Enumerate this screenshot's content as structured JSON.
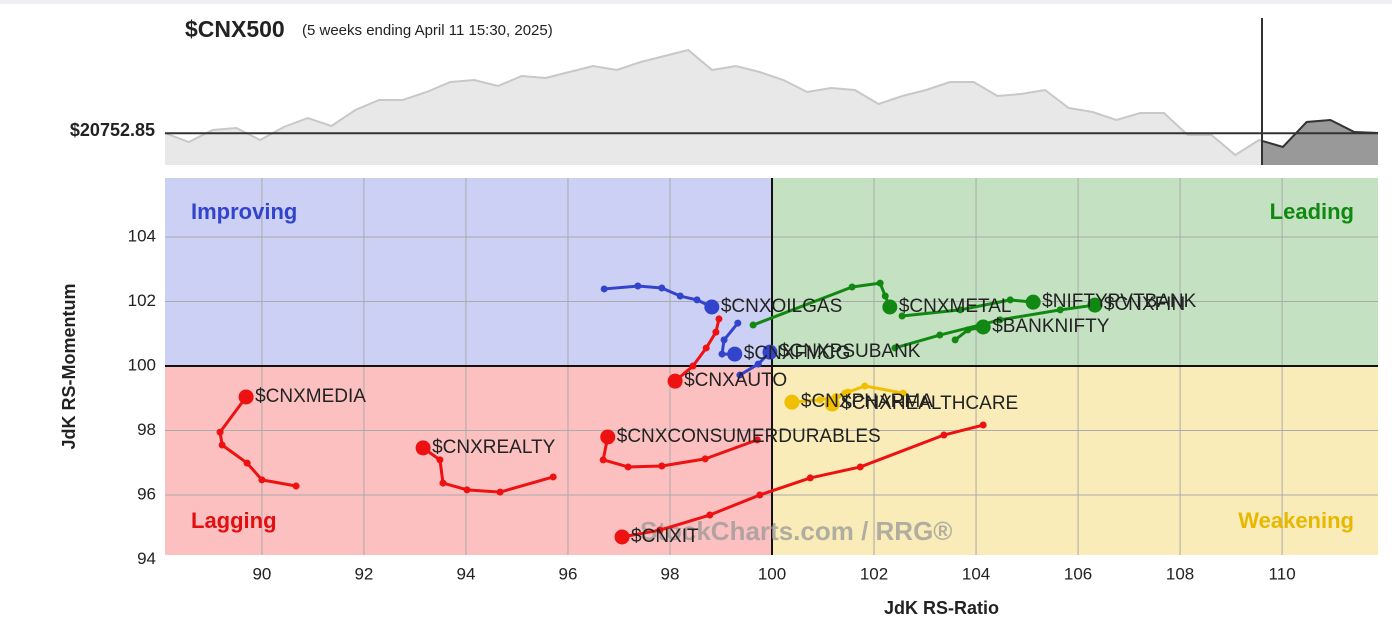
{
  "chart_data": [
    {
      "type": "area",
      "title": "$CNX500",
      "subtitle": "(5 weeks ending April 11 15:30, 2025)",
      "values": [
        20760,
        20490,
        20850,
        20910,
        20550,
        20940,
        21210,
        20970,
        21450,
        21750,
        21750,
        21990,
        22290,
        22350,
        22170,
        22470,
        22410,
        22590,
        22770,
        22650,
        22890,
        23070,
        23250,
        22650,
        22770,
        22590,
        22350,
        21990,
        22110,
        22050,
        21630,
        21870,
        22050,
        22290,
        22290,
        21870,
        21930,
        22050,
        21510,
        21390,
        21150,
        21360,
        21360,
        20700,
        20700,
        20100,
        20550,
        20340,
        21090,
        21150,
        20790,
        20760
      ],
      "ylim": [
        19800,
        24210
      ],
      "reference": {
        "value": 20752.85,
        "label": "$20752.85"
      },
      "color": "#c8c8c8"
    },
    {
      "type": "rrg",
      "xlabel": "JdK RS-Ratio",
      "ylabel": "JdK RS-Momentum",
      "xlim": [
        88.1,
        111.88
      ],
      "ylim": [
        94.14,
        105.83
      ],
      "xticks": [
        90,
        92,
        94,
        96,
        98,
        100,
        102,
        104,
        106,
        108,
        110
      ],
      "yticks": [
        94,
        96,
        98,
        100,
        102,
        104
      ],
      "center": [
        100,
        100
      ],
      "grid": true,
      "watermark": "StockCharts.com / RRG®",
      "quadrants": [
        {
          "label": "Improving",
          "color": "#ccd0f4",
          "text_color": "#3344cc"
        },
        {
          "label": "Leading",
          "color": "#c4e2c2",
          "text_color": "#118811"
        },
        {
          "label": "Lagging",
          "color": "#fcc0c0",
          "text_color": "#e01010"
        },
        {
          "label": "Weakening",
          "color": "#f9ecb8",
          "text_color": "#e8b800"
        }
      ],
      "series": [
        {
          "name": "$CNXMEDIA",
          "color": "#ee1111",
          "x": [
            90.67,
            90.0,
            89.71,
            89.22,
            89.18,
            89.69
          ],
          "values": [
            96.28,
            96.47,
            96.99,
            97.55,
            97.95,
            99.04
          ]
        },
        {
          "name": "$CNXREALTY",
          "color": "#ee1111",
          "x": [
            95.71,
            94.67,
            94.02,
            93.55,
            93.49,
            93.16
          ],
          "values": [
            96.56,
            96.09,
            96.16,
            96.37,
            97.09,
            97.46
          ]
        },
        {
          "name": "$CNXCONSUMERDURABLES",
          "color": "#ee1111",
          "x": [
            99.71,
            98.69,
            97.84,
            97.18,
            96.69,
            96.78
          ],
          "values": [
            97.71,
            97.12,
            96.9,
            96.87,
            97.09,
            97.8
          ]
        },
        {
          "name": "$CNXAUTO",
          "color": "#ee1111",
          "x": [
            98.96,
            98.9,
            98.71,
            98.45,
            98.1
          ],
          "values": [
            101.46,
            101.05,
            100.56,
            100.0,
            99.53
          ]
        },
        {
          "name": "$CNXIT",
          "color": "#ee1111",
          "x": [
            104.14,
            103.37,
            101.73,
            100.75,
            99.76,
            98.78,
            97.8,
            97.06
          ],
          "values": [
            98.17,
            97.86,
            96.87,
            96.53,
            96.0,
            95.38,
            94.91,
            94.7
          ]
        },
        {
          "name": "$CNXOILGAS",
          "color": "#3344cc",
          "x": [
            96.71,
            97.37,
            97.84,
            98.2,
            98.53,
            98.82
          ],
          "values": [
            102.39,
            102.48,
            102.42,
            102.17,
            102.05,
            101.83
          ]
        },
        {
          "name": "$CNXFMCG",
          "color": "#3344cc",
          "x": [
            99.33,
            99.06,
            99.02,
            99.27
          ],
          "values": [
            101.33,
            100.81,
            100.37,
            100.37
          ]
        },
        {
          "name": "$CNXPSUBANK",
          "color": "#3344cc",
          "x": [
            99.37,
            99.73,
            99.96
          ],
          "values": [
            99.72,
            100.06,
            100.43
          ]
        },
        {
          "name": "$CNXMETAL",
          "color": "#118811",
          "x": [
            99.63,
            101.57,
            102.12,
            102.22,
            102.31
          ],
          "values": [
            101.27,
            102.45,
            102.57,
            102.17,
            101.83
          ]
        },
        {
          "name": "$NIFTYPVTBANK",
          "color": "#118811",
          "x": [
            102.55,
            103.69,
            104.67,
            105.12
          ],
          "values": [
            101.55,
            101.74,
            102.05,
            101.98
          ]
        },
        {
          "name": "$CNXFIN",
          "color": "#118811",
          "x": [
            102.41,
            103.29,
            104.47,
            105.65,
            106.33
          ],
          "values": [
            100.56,
            100.96,
            101.43,
            101.74,
            101.89
          ]
        },
        {
          "name": "$BANKNIFTY",
          "color": "#118811",
          "x": [
            103.59,
            103.84,
            104.14
          ],
          "values": [
            100.81,
            101.12,
            101.21
          ]
        },
        {
          "name": "$CNXPHARMA",
          "color": "#f0c000",
          "x": [
            102.57,
            101.82,
            101.49,
            101.24,
            100.94,
            100.39
          ],
          "values": [
            99.16,
            99.38,
            99.19,
            99.04,
            98.95,
            98.88
          ]
        },
        {
          "name": "$CNXHEALTHCARE",
          "color": "#f0c000",
          "x": [
            101.43,
            101.24,
            101.18
          ],
          "values": [
            99.16,
            98.95,
            98.82
          ]
        }
      ]
    }
  ]
}
